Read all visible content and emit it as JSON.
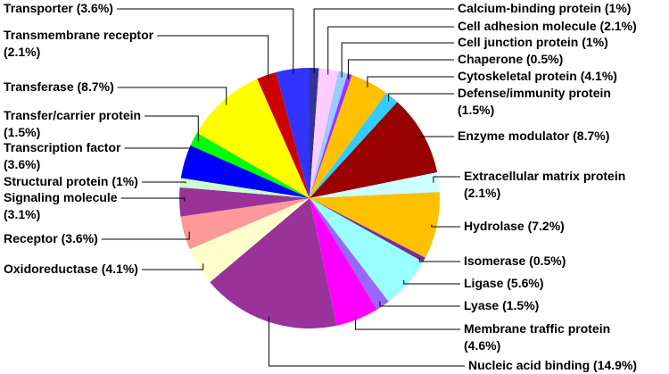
{
  "chart_data": {
    "type": "pie",
    "categories": [
      "Calcium-binding protein",
      "Cell adhesion molecule",
      "Cell junction protein",
      "Chaperone",
      "Cytoskeletal protein",
      "Defense/immunity protein",
      "Enzyme modulator",
      "Extracellular matrix protein",
      "Hydrolase",
      "Isomerase",
      "Ligase",
      "Lyase",
      "Membrane traffic protein",
      "Nucleic acid binding",
      "Oxidoreductase",
      "Receptor",
      "Signaling molecule",
      "Structural protein",
      "Transcription factor",
      "Transfer/carrier protein",
      "Transferase",
      "Transmembrane receptor",
      "Transporter"
    ],
    "values": [
      1,
      2.1,
      1,
      0.5,
      4.1,
      1.5,
      8.7,
      2.1,
      7.2,
      0.5,
      5.6,
      1.5,
      4.6,
      14.9,
      4.1,
      3.6,
      3.1,
      1,
      3.6,
      1.5,
      8.7,
      2.1,
      3.6
    ],
    "value_labels": [
      "(1%)",
      "(2.1%)",
      "(1%)",
      "(0.5%)",
      "(4.1%)",
      "(1.5%)",
      "(8.7%)",
      "(2.1%)",
      "(7.2%)",
      "(0.5%)",
      "(5.6%)",
      "(1.5%)",
      "(4.6%)",
      "(14.9%)",
      "(4.1%)",
      "(3.6%)",
      "(3.1%)",
      "(1%)",
      "(3.6%)",
      "(1.5%)",
      "(8.7%)",
      "(2.1%)",
      "(3.6%)"
    ],
    "colors": [
      "#333399",
      "#ffccff",
      "#99ccff",
      "#9933ff",
      "#ffc000",
      "#33ccff",
      "#990000",
      "#ccffff",
      "#ffc000",
      "#7030a0",
      "#99ffff",
      "#9966ff",
      "#ff00ff",
      "#993399",
      "#ffffcc",
      "#ff9999",
      "#993399",
      "#ccffcc",
      "#0000ff",
      "#00ff00",
      "#ffff00",
      "#cc0000",
      "#3333ff"
    ]
  }
}
